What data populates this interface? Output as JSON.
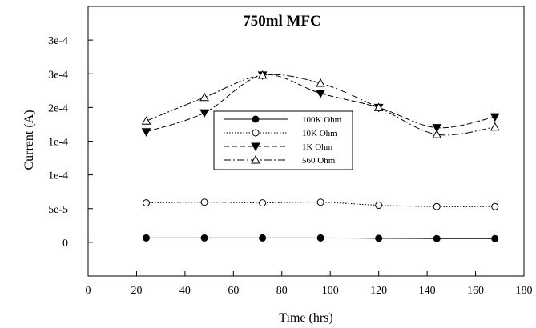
{
  "chart_data": {
    "type": "line",
    "title": "750ml MFC",
    "xlabel": "Time (hrs)",
    "ylabel": "Current (A)",
    "xlim": [
      0,
      180
    ],
    "ylim": [
      -5e-05,
      0.00035
    ],
    "x_ticks": [
      0,
      20,
      40,
      60,
      80,
      100,
      120,
      140,
      160,
      180
    ],
    "x_tick_labels": [
      "0",
      "20",
      "40",
      "60",
      "80",
      "100",
      "120",
      "140",
      "160",
      "180"
    ],
    "y_ticks": [
      0,
      5e-05,
      0.0001,
      0.00015,
      0.0002,
      0.00025,
      0.0003
    ],
    "y_tick_labels": [
      "0",
      "5e-5",
      "1e-4",
      "1e-4",
      "2e-4",
      "3e-4",
      "3e-4"
    ],
    "grid": false,
    "legend_position": "center-left",
    "x": [
      24,
      48,
      72,
      96,
      120,
      144,
      168
    ],
    "series": [
      {
        "name": "100K Ohm",
        "marker": "filled-circle",
        "line": "solid",
        "values": [
          6.5e-06,
          6.5e-06,
          6.5e-06,
          6.5e-06,
          6e-06,
          5.5e-06,
          5.5e-06
        ]
      },
      {
        "name": "10K Ohm",
        "marker": "open-circle",
        "line": "dotted",
        "values": [
          5.85e-05,
          5.95e-05,
          5.85e-05,
          5.95e-05,
          5.5e-05,
          5.3e-05,
          5.3e-05
        ]
      },
      {
        "name": "1K Ohm",
        "marker": "filled-triangle-down",
        "line": "dashed",
        "values": [
          0.000164,
          0.000192,
          0.000248,
          0.000221,
          0.0002,
          0.00017,
          0.000186
        ]
      },
      {
        "name": "560 Ohm",
        "marker": "open-triangle-up",
        "line": "dash-dot",
        "values": [
          0.00018,
          0.000215,
          0.000248,
          0.000236,
          0.0002,
          0.00016,
          0.000171
        ]
      }
    ]
  }
}
